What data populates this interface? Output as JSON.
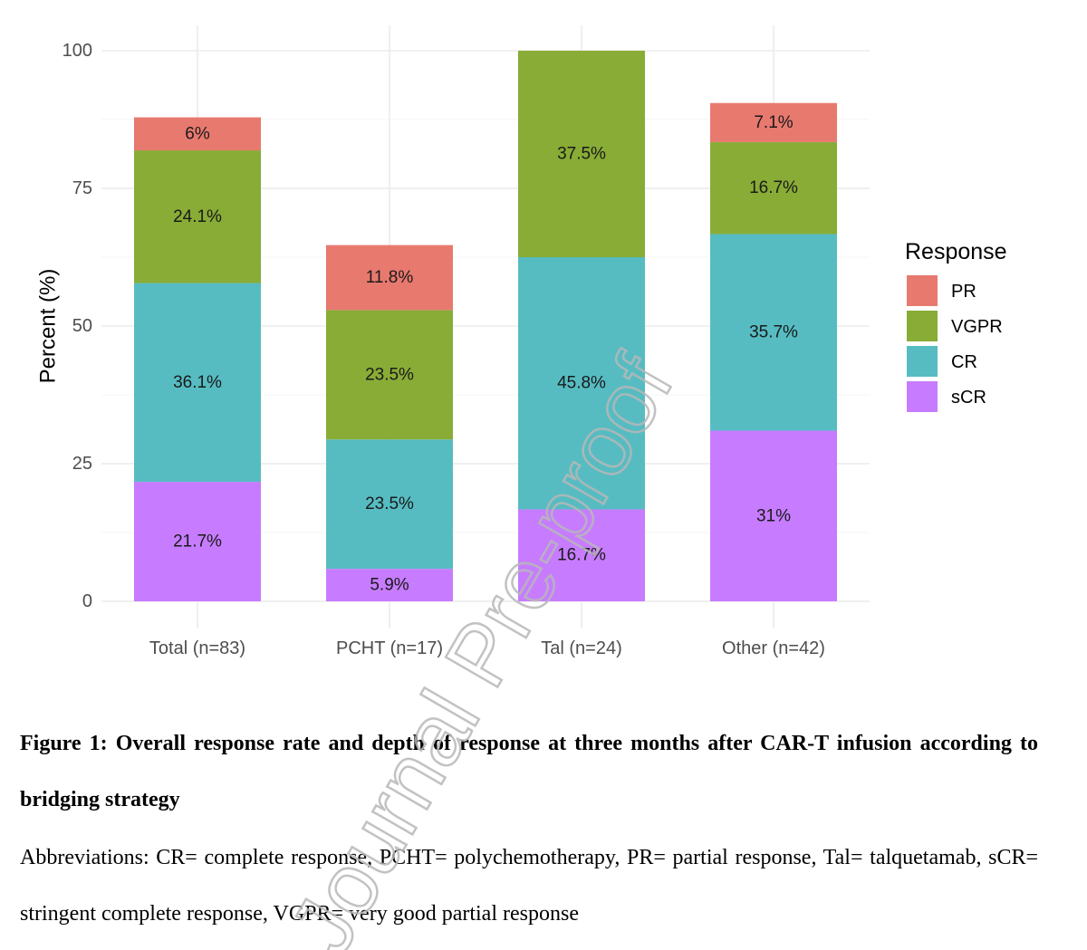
{
  "chart_data": {
    "type": "bar",
    "stacked": true,
    "categories": [
      "Total (n=83)",
      "PCHT (n=17)",
      "Tal (n=24)",
      "Other (n=42)"
    ],
    "ylabel": "Percent (%)",
    "ylim": [
      0,
      100
    ],
    "yticks": [
      0,
      25,
      50,
      75,
      100
    ],
    "grid": true,
    "legend_title": "Response",
    "legend_position": "right",
    "series": [
      {
        "name": "sCR",
        "color": "#c77cff",
        "values": [
          21.7,
          5.9,
          16.7,
          31
        ],
        "labels": [
          "21.7%",
          "5.9%",
          "16.7%",
          "31%"
        ]
      },
      {
        "name": "CR",
        "color": "#56bcc2",
        "values": [
          36.1,
          23.5,
          45.8,
          35.7
        ],
        "labels": [
          "36.1%",
          "23.5%",
          "45.8%",
          "35.7%"
        ]
      },
      {
        "name": "VGPR",
        "color": "#88ac36",
        "values": [
          24.1,
          23.5,
          37.5,
          16.7
        ],
        "labels": [
          "24.1%",
          "23.5%",
          "37.5%",
          "16.7%"
        ]
      },
      {
        "name": "PR",
        "color": "#e8796f",
        "values": [
          6,
          11.8,
          null,
          7.1
        ],
        "labels": [
          "6%",
          "11.8%",
          "",
          "7.1%"
        ]
      }
    ],
    "legend_order": [
      "PR",
      "VGPR",
      "CR",
      "sCR"
    ]
  },
  "caption": {
    "title": "Figure 1: Overall response rate and depth of response at three months after CAR-T infusion according to bridging strategy",
    "abbreviations": "Abbreviations: CR= complete response, PCHT= polychemotherapy, PR= partial response, Tal= talquetamab, sCR= stringent complete response, VGPR= very good partial response"
  },
  "watermark": "Journal Pre-proof"
}
